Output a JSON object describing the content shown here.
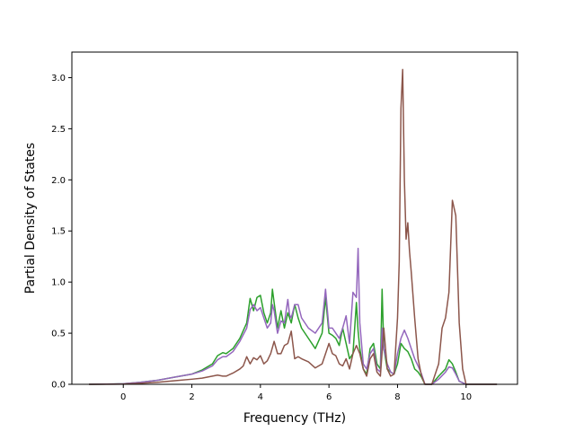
{
  "chart_data": {
    "type": "line",
    "title": "",
    "xlabel": "Frequency (THz)",
    "ylabel": "Partial Density of States",
    "xlim": [
      -1.5,
      11.5
    ],
    "ylim": [
      0.0,
      3.25
    ],
    "xticks": [
      0,
      2,
      4,
      6,
      8,
      10
    ],
    "yticks": [
      0.0,
      0.5,
      1.0,
      1.5,
      2.0,
      2.5,
      3.0
    ],
    "xtick_labels": [
      "0",
      "2",
      "4",
      "6",
      "8",
      "10"
    ],
    "ytick_labels": [
      "0.0",
      "0.5",
      "1.0",
      "1.5",
      "2.0",
      "2.5",
      "3.0"
    ],
    "grid": false,
    "legend": "none",
    "series": [
      {
        "color": "#2ca02c",
        "x": [
          -1.0,
          0.0,
          0.5,
          1.0,
          1.5,
          2.0,
          2.3,
          2.6,
          2.75,
          2.9,
          3.0,
          3.2,
          3.4,
          3.6,
          3.7,
          3.8,
          3.9,
          4.0,
          4.1,
          4.2,
          4.3,
          4.35,
          4.4,
          4.5,
          4.6,
          4.7,
          4.8,
          4.9,
          5.0,
          5.1,
          5.2,
          5.4,
          5.6,
          5.8,
          5.9,
          6.0,
          6.1,
          6.2,
          6.3,
          6.4,
          6.5,
          6.6,
          6.7,
          6.8,
          6.85,
          6.9,
          7.0,
          7.1,
          7.2,
          7.3,
          7.4,
          7.5,
          7.55,
          7.6,
          7.7,
          7.8,
          7.9,
          8.0,
          8.1,
          8.2,
          8.3,
          8.4,
          8.5,
          8.6,
          8.7,
          8.8,
          9.0,
          9.2,
          9.4,
          9.5,
          9.55,
          9.6,
          9.7,
          9.8,
          10.0,
          10.9
        ],
        "y": [
          0.0,
          0.005,
          0.02,
          0.04,
          0.07,
          0.1,
          0.14,
          0.2,
          0.28,
          0.31,
          0.3,
          0.35,
          0.45,
          0.6,
          0.84,
          0.72,
          0.85,
          0.87,
          0.7,
          0.6,
          0.7,
          0.93,
          0.8,
          0.55,
          0.72,
          0.55,
          0.7,
          0.6,
          0.78,
          0.65,
          0.55,
          0.45,
          0.35,
          0.5,
          0.85,
          0.5,
          0.48,
          0.45,
          0.38,
          0.55,
          0.4,
          0.25,
          0.3,
          0.8,
          0.52,
          0.35,
          0.15,
          0.1,
          0.35,
          0.4,
          0.2,
          0.15,
          0.93,
          0.35,
          0.15,
          0.12,
          0.1,
          0.2,
          0.4,
          0.35,
          0.32,
          0.25,
          0.15,
          0.12,
          0.07,
          0.0,
          0.0,
          0.08,
          0.15,
          0.24,
          0.22,
          0.2,
          0.12,
          0.03,
          0.0,
          0.0
        ]
      },
      {
        "color": "#9467bd",
        "x": [
          -1.0,
          0.0,
          0.5,
          1.0,
          1.5,
          2.0,
          2.3,
          2.6,
          2.75,
          2.9,
          3.0,
          3.2,
          3.4,
          3.6,
          3.7,
          3.8,
          3.9,
          4.0,
          4.1,
          4.2,
          4.3,
          4.35,
          4.4,
          4.5,
          4.6,
          4.7,
          4.8,
          4.85,
          4.9,
          5.0,
          5.1,
          5.2,
          5.4,
          5.6,
          5.8,
          5.9,
          6.0,
          6.1,
          6.2,
          6.3,
          6.4,
          6.5,
          6.6,
          6.7,
          6.8,
          6.85,
          6.9,
          7.0,
          7.1,
          7.2,
          7.3,
          7.4,
          7.5,
          7.55,
          7.6,
          7.7,
          7.8,
          7.9,
          8.0,
          8.1,
          8.2,
          8.3,
          8.4,
          8.5,
          8.6,
          8.7,
          8.8,
          9.0,
          9.2,
          9.4,
          9.5,
          9.6,
          9.7,
          9.8,
          10.0,
          10.9
        ],
        "y": [
          0.0,
          0.005,
          0.02,
          0.04,
          0.07,
          0.1,
          0.13,
          0.18,
          0.24,
          0.27,
          0.27,
          0.32,
          0.42,
          0.55,
          0.73,
          0.78,
          0.72,
          0.75,
          0.65,
          0.55,
          0.6,
          0.78,
          0.72,
          0.5,
          0.62,
          0.6,
          0.83,
          0.68,
          0.65,
          0.78,
          0.78,
          0.65,
          0.55,
          0.5,
          0.6,
          0.93,
          0.55,
          0.55,
          0.5,
          0.45,
          0.55,
          0.67,
          0.4,
          0.9,
          0.85,
          1.33,
          0.6,
          0.2,
          0.15,
          0.3,
          0.35,
          0.15,
          0.12,
          0.55,
          0.35,
          0.2,
          0.12,
          0.1,
          0.3,
          0.45,
          0.53,
          0.45,
          0.35,
          0.25,
          0.18,
          0.1,
          0.0,
          0.0,
          0.05,
          0.12,
          0.17,
          0.16,
          0.1,
          0.03,
          0.0,
          0.0
        ]
      },
      {
        "color": "#8c564b",
        "x": [
          -1.0,
          0.0,
          0.5,
          1.0,
          1.5,
          2.0,
          2.3,
          2.6,
          2.75,
          2.9,
          3.0,
          3.2,
          3.4,
          3.5,
          3.6,
          3.7,
          3.8,
          3.9,
          4.0,
          4.1,
          4.2,
          4.3,
          4.4,
          4.5,
          4.6,
          4.7,
          4.8,
          4.9,
          5.0,
          5.1,
          5.2,
          5.4,
          5.6,
          5.8,
          5.9,
          6.0,
          6.1,
          6.2,
          6.3,
          6.4,
          6.5,
          6.6,
          6.7,
          6.8,
          6.9,
          7.0,
          7.1,
          7.2,
          7.3,
          7.4,
          7.5,
          7.6,
          7.7,
          7.8,
          7.9,
          8.0,
          8.05,
          8.1,
          8.15,
          8.2,
          8.25,
          8.3,
          8.35,
          8.4,
          8.5,
          8.6,
          8.7,
          8.8,
          9.0,
          9.2,
          9.3,
          9.4,
          9.5,
          9.55,
          9.6,
          9.7,
          9.8,
          9.9,
          10.0,
          10.9
        ],
        "y": [
          0.0,
          0.002,
          0.01,
          0.02,
          0.035,
          0.05,
          0.06,
          0.08,
          0.09,
          0.08,
          0.08,
          0.11,
          0.15,
          0.18,
          0.27,
          0.2,
          0.26,
          0.24,
          0.28,
          0.2,
          0.23,
          0.3,
          0.42,
          0.3,
          0.3,
          0.38,
          0.4,
          0.52,
          0.25,
          0.27,
          0.25,
          0.22,
          0.16,
          0.2,
          0.3,
          0.4,
          0.3,
          0.28,
          0.2,
          0.18,
          0.25,
          0.15,
          0.3,
          0.38,
          0.3,
          0.15,
          0.08,
          0.25,
          0.3,
          0.12,
          0.08,
          0.55,
          0.15,
          0.08,
          0.1,
          0.65,
          1.2,
          2.7,
          3.08,
          2.0,
          1.42,
          1.58,
          1.3,
          1.1,
          0.65,
          0.25,
          0.08,
          0.0,
          0.0,
          0.2,
          0.55,
          0.65,
          0.9,
          1.35,
          1.8,
          1.65,
          0.6,
          0.15,
          0.0,
          0.0
        ]
      }
    ]
  }
}
